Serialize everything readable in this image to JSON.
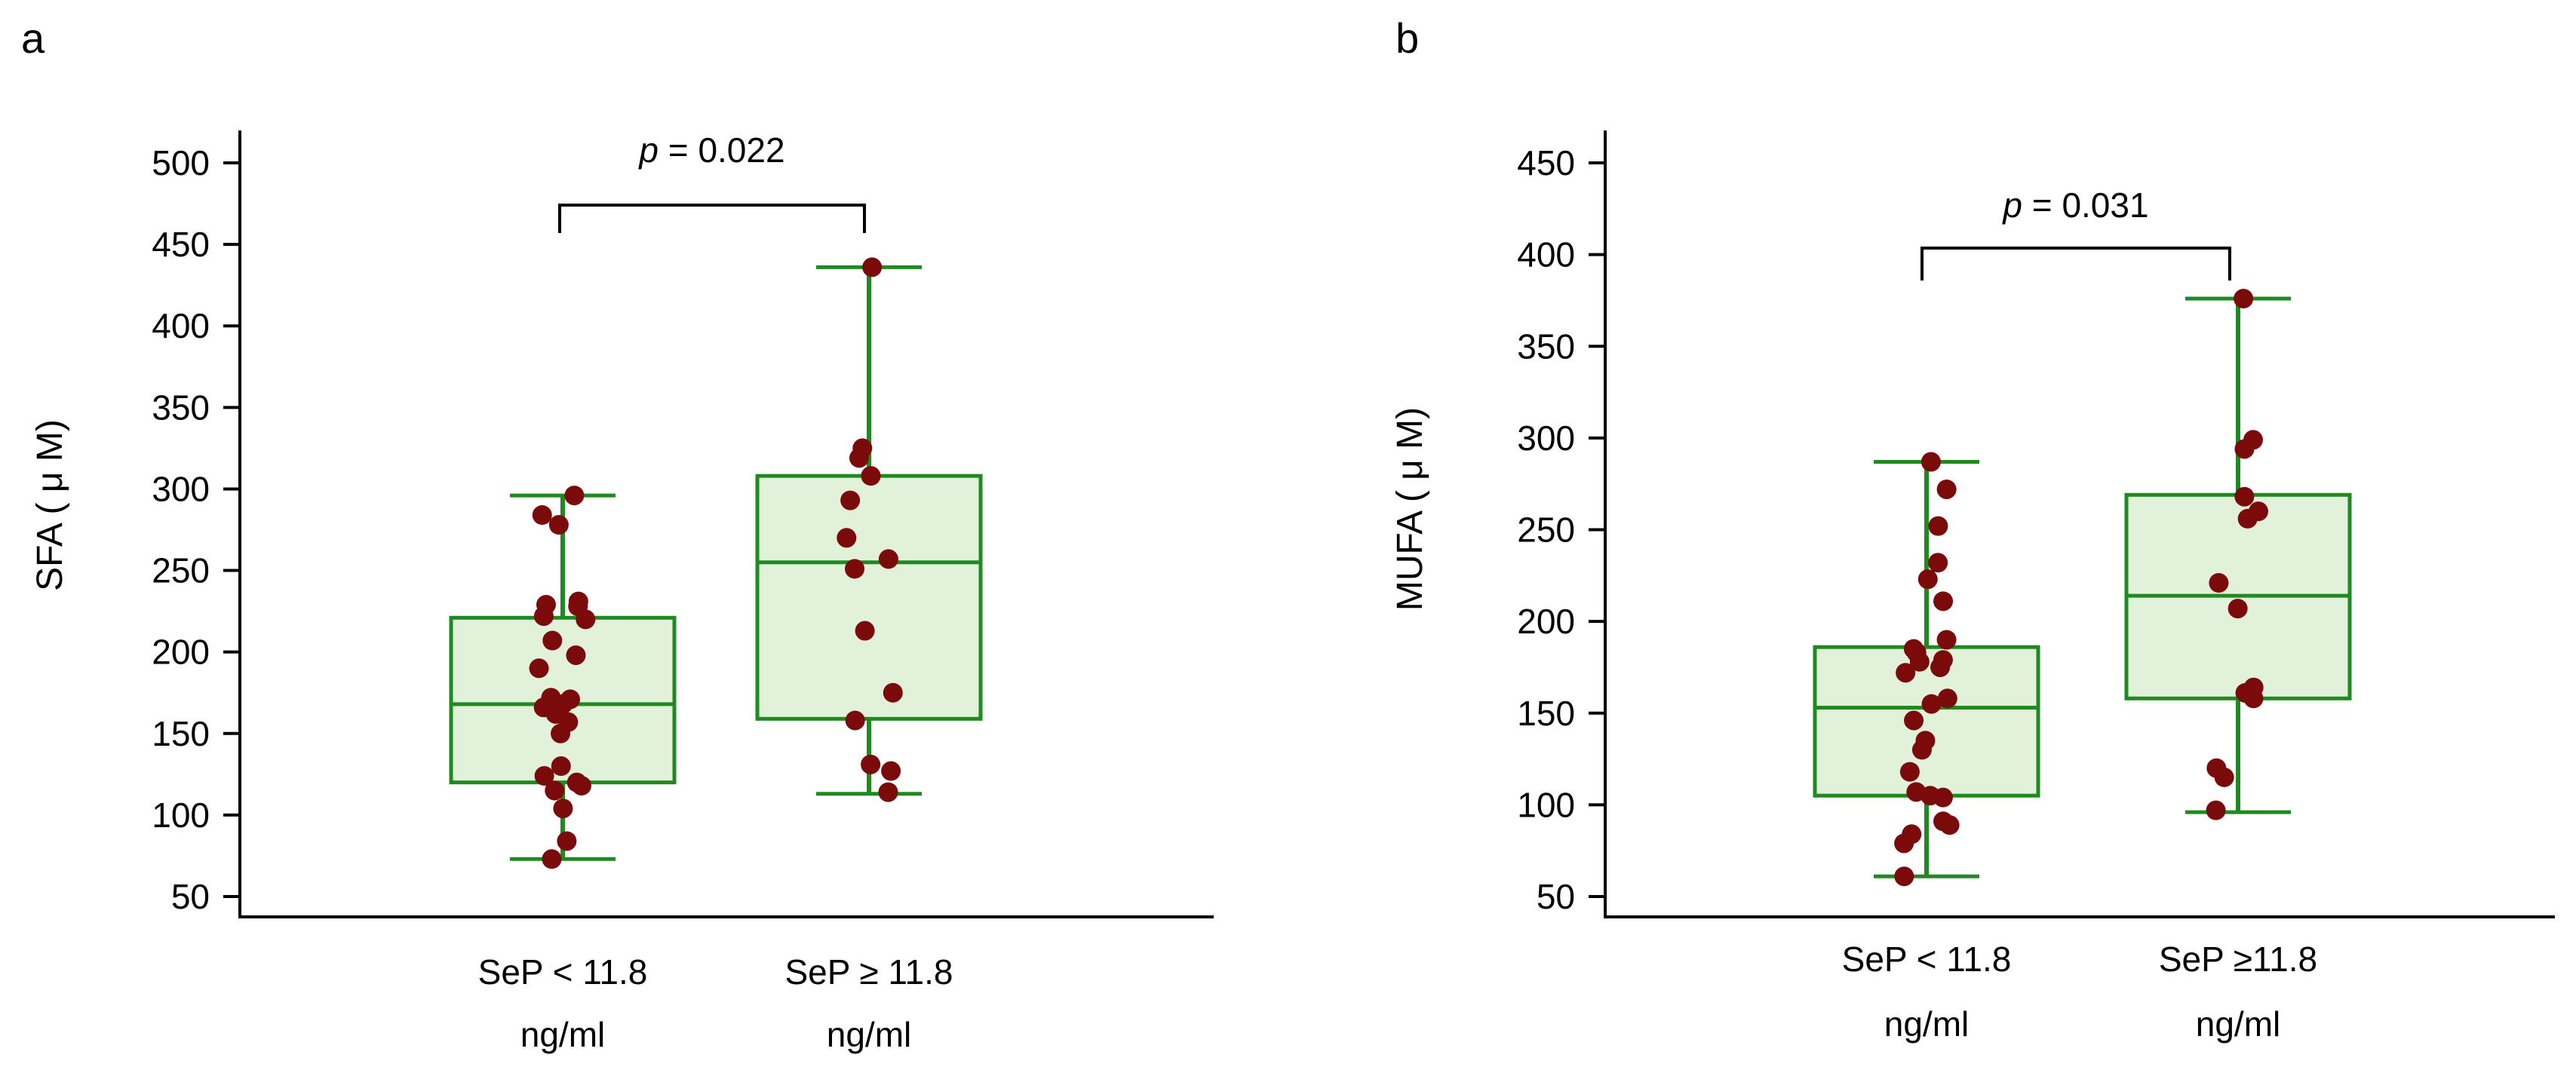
{
  "colors": {
    "box_fill": "#e2f1da",
    "box_stroke": "#1f8a1f",
    "point": "#7b0a0a",
    "axis": "#000000"
  },
  "chart_data": [
    {
      "panel": "a",
      "type": "box",
      "ylabel": "SFA ( μ M)",
      "ylim": [
        50,
        500
      ],
      "yticks": [
        50,
        100,
        150,
        200,
        250,
        300,
        350,
        400,
        450,
        500
      ],
      "categories": [
        {
          "line1": "SeP < 11.8",
          "line2": "ng/ml"
        },
        {
          "line1": "SeP ≥ 11.8",
          "line2": "ng/ml"
        }
      ],
      "pvalue": {
        "label": "p",
        "text": " = 0.022"
      },
      "boxes": [
        {
          "min": 73,
          "q1": 120,
          "median": 168,
          "q3": 221,
          "max": 296
        },
        {
          "min": 113,
          "q1": 159,
          "median": 255,
          "q3": 308,
          "max": 436
        }
      ],
      "points": [
        [
          296,
          284,
          278,
          231,
          229,
          228,
          222,
          220,
          207,
          198,
          190,
          172,
          171,
          168,
          166,
          162,
          157,
          150,
          130,
          124,
          120,
          118,
          115,
          104,
          84,
          73
        ],
        [
          436,
          325,
          319,
          308,
          293,
          270,
          257,
          251,
          213,
          175,
          158,
          131,
          127,
          114
        ]
      ]
    },
    {
      "panel": "b",
      "type": "box",
      "ylabel": "MUFA ( μ M)",
      "ylim": [
        50,
        450
      ],
      "yticks": [
        50,
        100,
        150,
        200,
        250,
        300,
        350,
        400,
        450
      ],
      "categories": [
        {
          "line1": "SeP < 11.8",
          "line2": "ng/ml"
        },
        {
          "line1": "SeP ≥11.8",
          "line2": "ng/ml"
        }
      ],
      "pvalue": {
        "label": "p",
        "text": " = 0.031"
      },
      "boxes": [
        {
          "min": 61,
          "q1": 105,
          "median": 153,
          "q3": 186,
          "max": 287
        },
        {
          "min": 96,
          "q1": 158,
          "median": 214,
          "q3": 269,
          "max": 376
        }
      ],
      "points": [
        [
          287,
          272,
          252,
          232,
          223,
          211,
          190,
          185,
          183,
          179,
          178,
          175,
          172,
          158,
          155,
          146,
          135,
          130,
          118,
          107,
          105,
          104,
          91,
          89,
          84,
          79,
          61
        ],
        [
          376,
          299,
          294,
          268,
          260,
          256,
          221,
          207,
          164,
          161,
          158,
          120,
          115,
          97
        ]
      ]
    }
  ]
}
